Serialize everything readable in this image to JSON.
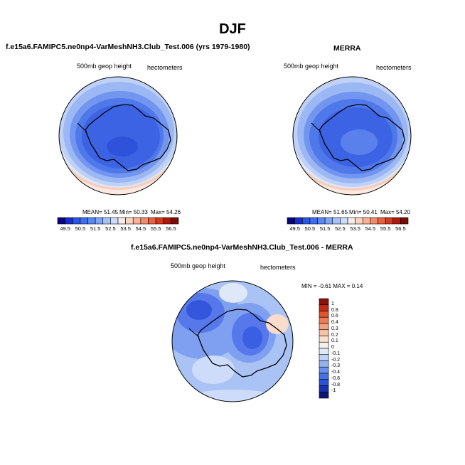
{
  "page": {
    "title": "DJF",
    "panel1_title": "f.e15a6.FAMIPC5.ne0np4-VarMeshNH3.Club_Test.006 (yrs 1979-1980)",
    "panel2_title": "MERRA",
    "panel3_title": "f.e15a6.FAMIPC5.ne0np4-VarMeshNH3.Club_Test.006 - MERRA"
  },
  "chart_data": [
    {
      "type": "heatmap",
      "projection": "south-polar-stereographic",
      "title": "f.e15a6.FAMIPC5.ne0np4-VarMeshNH3.Club_Test.006 (yrs 1979-1980)",
      "variable_label": "500mb geop height",
      "units_label": "hectometers",
      "stats": {
        "mean": "51.45",
        "min": "50.33",
        "max": "54.26"
      },
      "stats_text": {
        "mean": "MEAN=  51.45",
        "min": "Min=  50.33",
        "max": "Max=  54.26"
      },
      "colorbar_levels": [
        "49.5",
        "50.5",
        "51.5",
        "52.5",
        "53.5",
        "54.5",
        "55.5",
        "56.5"
      ],
      "colorbar_colors": [
        "#08067a",
        "#1a2ecf",
        "#2b56e6",
        "#3f6ef0",
        "#5a88f2",
        "#7fa6f6",
        "#a6c3f9",
        "#cddcfb",
        "#f4ece8",
        "#fbd3c0",
        "#f8b196",
        "#f28b6b",
        "#e7623f",
        "#d33a21",
        "#b01a0d",
        "#7a0c05"
      ]
    },
    {
      "type": "heatmap",
      "projection": "south-polar-stereographic",
      "title": "MERRA",
      "variable_label": "500mb geop height",
      "units_label": "hectometers",
      "stats": {
        "mean": "51.65",
        "min": "50.41",
        "max": "54.20"
      },
      "stats_text": {
        "mean": "MEAN=  51.65",
        "min": "Min=  50.41",
        "max": "Max=  54.20"
      },
      "colorbar_levels": [
        "49.5",
        "50.5",
        "51.5",
        "52.5",
        "53.5",
        "54.5",
        "55.5",
        "56.5"
      ],
      "colorbar_colors": [
        "#08067a",
        "#1a2ecf",
        "#2b56e6",
        "#3f6ef0",
        "#5a88f2",
        "#7fa6f6",
        "#a6c3f9",
        "#cddcfb",
        "#f4ece8",
        "#fbd3c0",
        "#f8b196",
        "#f28b6b",
        "#e7623f",
        "#d33a21",
        "#b01a0d",
        "#7a0c05"
      ]
    },
    {
      "type": "heatmap",
      "projection": "south-polar-stereographic",
      "title": "f.e15a6.FAMIPC5.ne0np4-VarMeshNH3.Club_Test.006 - MERRA",
      "variable_label": "500mb geop height",
      "units_label": "hectometers",
      "stats": {
        "min": "-0.61",
        "max": "0.14"
      },
      "stats_text": "MIN =  -0.61 MAX =   0.14",
      "colorbar_levels": [
        "1",
        "0.8",
        "0.6",
        "0.4",
        "0.3",
        "0.2",
        "0.1",
        "0",
        "-0.1",
        "-0.2",
        "-0.3",
        "-0.4",
        "-0.6",
        "-0.8",
        "-1"
      ],
      "colorbar_colors": [
        "#8b1008",
        "#c62a14",
        "#e3532f",
        "#ef7b57",
        "#f5a07f",
        "#f9c3a8",
        "#fbe0d0",
        "#f7f0ea",
        "#dfeaf9",
        "#bcd2f6",
        "#93b3f2",
        "#6a92ee",
        "#4571e9",
        "#2c52dc",
        "#1834b4",
        "#0b1678"
      ]
    }
  ]
}
